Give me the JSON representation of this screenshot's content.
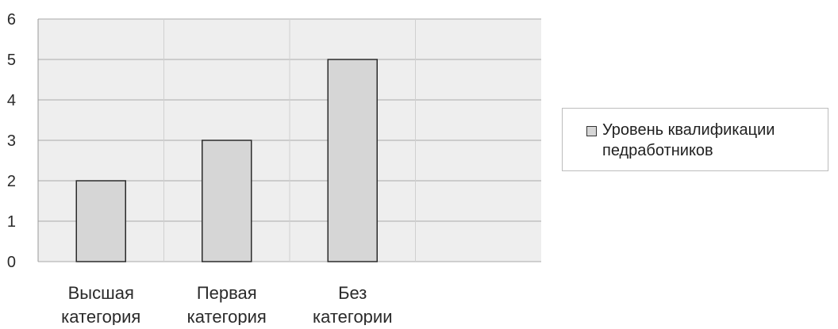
{
  "chart_data": {
    "type": "bar",
    "categories": [
      [
        "Высшая",
        "категория"
      ],
      [
        "Первая",
        "категория"
      ],
      [
        "Без",
        "категории"
      ]
    ],
    "series": [
      {
        "name": "Уровень квалификации педработников",
        "values": [
          2,
          3,
          5
        ]
      }
    ],
    "ylim": [
      0,
      6
    ],
    "yticks": [
      0,
      1,
      2,
      3,
      4,
      5,
      6
    ],
    "grid": true,
    "legend_position": "right",
    "colors": {
      "bar_fill": "#d6d6d6",
      "bar_stroke": "#2b2b2b",
      "plot_bg": "#eeeeee",
      "grid": "#a9a9a9"
    }
  },
  "legend": {
    "label_line1": "Уровень квалификации",
    "label_line2": "педработников"
  }
}
